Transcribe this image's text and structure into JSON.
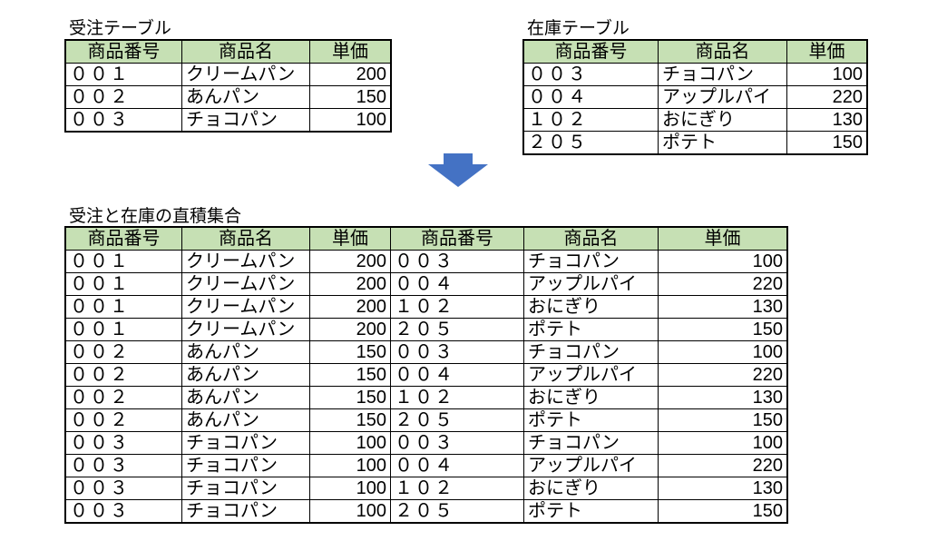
{
  "colors": {
    "header_fill": "#C6E0B4",
    "arrow": "#4472C4"
  },
  "orders": {
    "title": "受注テーブル",
    "headers": [
      "商品番号",
      "商品名",
      "単価"
    ],
    "rows": [
      [
        "００１",
        "クリームパン",
        "200"
      ],
      [
        "００２",
        "あんパン",
        "150"
      ],
      [
        "００３",
        "チョコパン",
        "100"
      ]
    ]
  },
  "stock": {
    "title": "在庫テーブル",
    "headers": [
      "商品番号",
      "商品名",
      "単価"
    ],
    "rows": [
      [
        "００３",
        "チョコパン",
        "100"
      ],
      [
        "００４",
        "アップルパイ",
        "220"
      ],
      [
        "１０２",
        "おにぎり",
        "130"
      ],
      [
        "２０５",
        "ポテト",
        "150"
      ]
    ]
  },
  "arrow_icon": "down-arrow",
  "product": {
    "title": "受注と在庫の直積集合",
    "headers": [
      "商品番号",
      "商品名",
      "単価",
      "商品番号",
      "商品名",
      "単価"
    ],
    "rows": [
      [
        "００１",
        "クリームパン",
        "200",
        "００３",
        "チョコパン",
        "100"
      ],
      [
        "００１",
        "クリームパン",
        "200",
        "００４",
        "アップルパイ",
        "220"
      ],
      [
        "００１",
        "クリームパン",
        "200",
        "１０２",
        "おにぎり",
        "130"
      ],
      [
        "００１",
        "クリームパン",
        "200",
        "２０５",
        "ポテト",
        "150"
      ],
      [
        "００２",
        "あんパン",
        "150",
        "００３",
        "チョコパン",
        "100"
      ],
      [
        "００２",
        "あんパン",
        "150",
        "００４",
        "アップルパイ",
        "220"
      ],
      [
        "００２",
        "あんパン",
        "150",
        "１０２",
        "おにぎり",
        "130"
      ],
      [
        "００２",
        "あんパン",
        "150",
        "２０５",
        "ポテト",
        "150"
      ],
      [
        "００３",
        "チョコパン",
        "100",
        "００３",
        "チョコパン",
        "100"
      ],
      [
        "００３",
        "チョコパン",
        "100",
        "００４",
        "アップルパイ",
        "220"
      ],
      [
        "００３",
        "チョコパン",
        "100",
        "１０２",
        "おにぎり",
        "130"
      ],
      [
        "００３",
        "チョコパン",
        "100",
        "２０５",
        "ポテト",
        "150"
      ]
    ]
  }
}
